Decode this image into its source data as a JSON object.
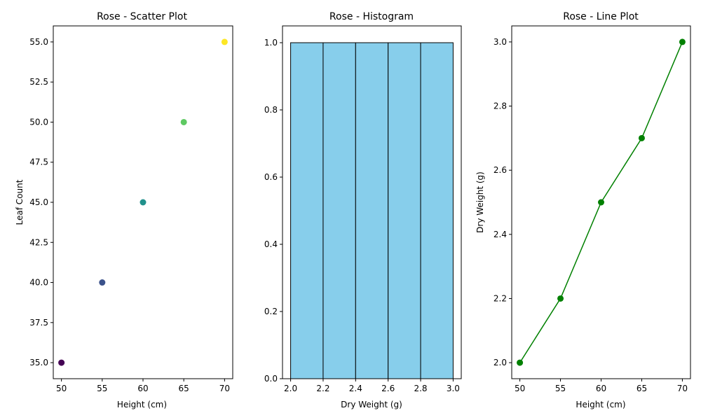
{
  "chart_data": [
    {
      "type": "scatter",
      "title": "Rose - Scatter Plot",
      "xlabel": "Height (cm)",
      "ylabel": "Leaf Count",
      "x": [
        50,
        55,
        60,
        65,
        70
      ],
      "y": [
        35,
        40,
        45,
        50,
        55
      ],
      "point_colors": [
        "#440154",
        "#3b528b",
        "#21918c",
        "#5ec962",
        "#fde725"
      ],
      "xlim": [
        49,
        71
      ],
      "ylim": [
        34,
        56
      ],
      "xticks": [
        "50",
        "55",
        "60",
        "65",
        "70"
      ],
      "yticks": [
        "35.0",
        "37.5",
        "40.0",
        "42.5",
        "45.0",
        "47.5",
        "50.0",
        "52.5",
        "55.0"
      ],
      "grid": false
    },
    {
      "type": "bar",
      "title": "Rose - Histogram",
      "xlabel": "Dry Weight (g)",
      "ylabel": "",
      "bin_edges": [
        2.0,
        2.2,
        2.4,
        2.6,
        2.8,
        3.0
      ],
      "values": [
        1,
        1,
        1,
        1,
        1
      ],
      "bar_color": "#87ceeb",
      "edge_color": "#000000",
      "xlim": [
        1.95,
        3.05
      ],
      "ylim": [
        0,
        1.05
      ],
      "xticks": [
        "2.0",
        "2.2",
        "2.4",
        "2.6",
        "2.8",
        "3.0"
      ],
      "yticks": [
        "0.0",
        "0.2",
        "0.4",
        "0.6",
        "0.8",
        "1.0"
      ],
      "grid": false
    },
    {
      "type": "line",
      "title": "Rose - Line Plot",
      "xlabel": "Height (cm)",
      "ylabel": "Dry Weight (g)",
      "x": [
        50,
        55,
        60,
        65,
        70
      ],
      "y": [
        2.0,
        2.2,
        2.5,
        2.7,
        3.0
      ],
      "line_color": "#008000",
      "xlim": [
        49,
        71
      ],
      "ylim": [
        1.95,
        3.05
      ],
      "xticks": [
        "50",
        "55",
        "60",
        "65",
        "70"
      ],
      "yticks": [
        "2.0",
        "2.2",
        "2.4",
        "2.6",
        "2.8",
        "3.0"
      ],
      "grid": false
    }
  ]
}
